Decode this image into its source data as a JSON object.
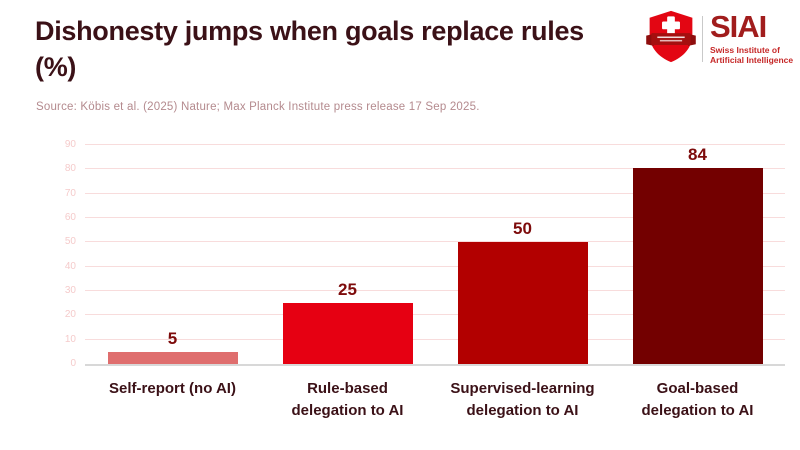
{
  "header": {
    "title": "Dishonesty jumps when goals replace rules (%)",
    "source": "Source: Köbis et al. (2025) Nature; Max Planck Institute press release 17 Sep 2025."
  },
  "logo": {
    "shield_icon": "swiss-shield-with-cross-and-ribbon",
    "acronym": "SIAI",
    "name_line1": "Swiss Institute of",
    "name_line2": "Artificial Intelligence",
    "shield_color": "#e30613",
    "ribbon_color": "#a50f0f",
    "acronym_color": "#a11d1d",
    "name_color": "#c62828"
  },
  "chart_data": {
    "type": "bar",
    "title": "Dishonesty jumps when goals replace rules (%)",
    "categories": [
      "Self-report (no AI)",
      "Rule-based delegation to AI",
      "Supervised-learning delegation to AI",
      "Goal-based delegation to AI"
    ],
    "values": [
      5,
      25,
      50,
      84
    ],
    "bar_colors": [
      "#df6e6e",
      "#e60012",
      "#b20000",
      "#730000"
    ],
    "value_label_color": "#7d0b0b",
    "xlabel": "",
    "ylabel": "",
    "ylim": [
      0,
      90
    ],
    "yticks": [
      0,
      10,
      20,
      30,
      40,
      50,
      60,
      70,
      80,
      90
    ],
    "grid": true,
    "legend": false,
    "value_labels_shown": true
  },
  "colors": {
    "background": "#ffffff",
    "title_text": "#3b1117",
    "source_text": "#b48a8e",
    "axis_line": "#d8d8d8",
    "gridline": "#f8dcdc",
    "ytick_text": "#f5cbcb"
  }
}
